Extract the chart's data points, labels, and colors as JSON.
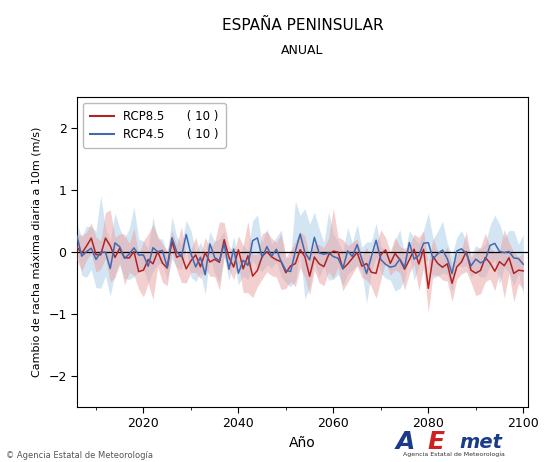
{
  "title": "ESPAÑA PENINSULAR",
  "subtitle": "ANUAL",
  "xlabel": "Año",
  "ylabel": "Cambio de racha máxima diaria a 10m (m/s)",
  "year_start": 2006,
  "year_end": 2100,
  "ylim": [
    -2.5,
    2.5
  ],
  "yticks": [
    -2,
    -1,
    0,
    1,
    2
  ],
  "xticks": [
    2020,
    2040,
    2060,
    2080,
    2100
  ],
  "rcp85_color": "#B22222",
  "rcp45_color": "#4169B0",
  "rcp85_fill_color": "#E8A0A0",
  "rcp45_fill_color": "#A8CDE8",
  "legend_rcp85": "RCP8.5",
  "legend_rcp45": "RCP4.5",
  "legend_n85": "( 10 )",
  "legend_n45": "( 10 )",
  "background_color": "#ffffff",
  "axes_background": "#ffffff",
  "copyright_text": "© Agencia Estatal de Meteorología",
  "seed85": 42,
  "seed45": 7
}
